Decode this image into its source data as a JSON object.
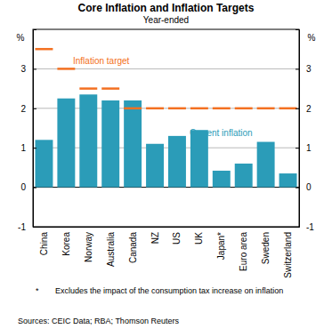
{
  "chart_data": {
    "type": "bar",
    "title": "Core Inflation and Inflation Targets",
    "subtitle": "Year-ended",
    "y_label": "%",
    "categories": [
      "China",
      "Korea",
      "Norway",
      "Australia",
      "Canada",
      "NZ",
      "US",
      "UK",
      "Japan*",
      "Euro area",
      "Sweden",
      "Switzerland"
    ],
    "series": [
      {
        "name": "Current inflation",
        "type": "bar",
        "color": "#2b9cb8",
        "values": [
          1.2,
          2.25,
          2.35,
          2.2,
          2.2,
          1.1,
          1.3,
          1.45,
          0.42,
          0.6,
          1.15,
          0.35
        ]
      },
      {
        "name": "Inflation target",
        "type": "scatter",
        "marker": "dash",
        "color": "#f37021",
        "values": [
          3.5,
          3.0,
          2.5,
          2.5,
          2.0,
          2.0,
          2.0,
          2.0,
          2.0,
          2.0,
          2.0,
          2.0
        ]
      }
    ],
    "ylim": [
      -1,
      4
    ],
    "yticks": [
      -1,
      0,
      1,
      2,
      3
    ],
    "grid": true,
    "footnote": {
      "marker": "*",
      "text": "Excludes the impact of the consumption tax increase on inflation"
    },
    "source": "Sources: CEIC Data; RBA; Thomson Reuters"
  }
}
